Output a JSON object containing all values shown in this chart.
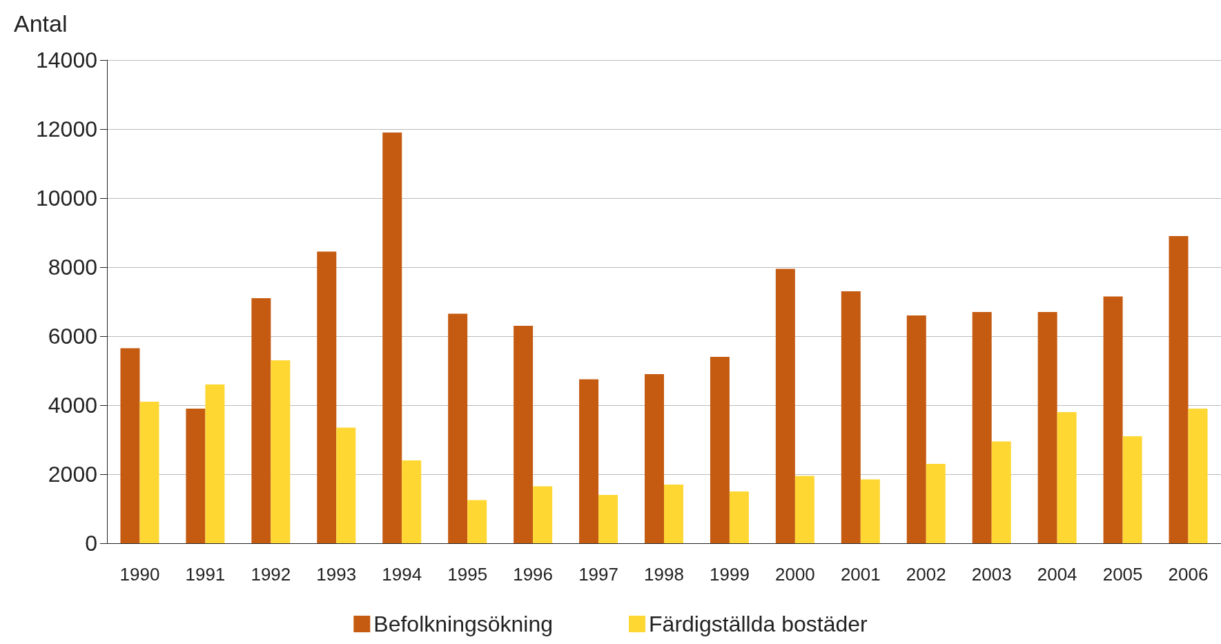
{
  "chart_data": {
    "type": "bar",
    "ylabel": "Antal",
    "categories": [
      "1990",
      "1991",
      "1992",
      "1993",
      "1994",
      "1995",
      "1996",
      "1997",
      "1998",
      "1999",
      "2000",
      "2001",
      "2002",
      "2003",
      "2004",
      "2005",
      "2006"
    ],
    "series": [
      {
        "name": "Befolkningsökning",
        "color": "#c55a11",
        "values": [
          5650,
          3900,
          7100,
          8450,
          11900,
          6650,
          6300,
          4750,
          4900,
          5400,
          7950,
          7300,
          6600,
          6700,
          6700,
          7150,
          8900
        ]
      },
      {
        "name": "Färdigställda bostäder",
        "color": "#ffd733",
        "values": [
          4100,
          4600,
          5300,
          3350,
          2400,
          1250,
          1650,
          1400,
          1700,
          1500,
          1950,
          1850,
          2300,
          2950,
          3800,
          3100,
          3900
        ]
      }
    ],
    "ylim": [
      0,
      14000
    ],
    "yticks": [
      0,
      2000,
      4000,
      6000,
      8000,
      10000,
      12000,
      14000
    ],
    "grid": "y",
    "legend": "bottom"
  }
}
